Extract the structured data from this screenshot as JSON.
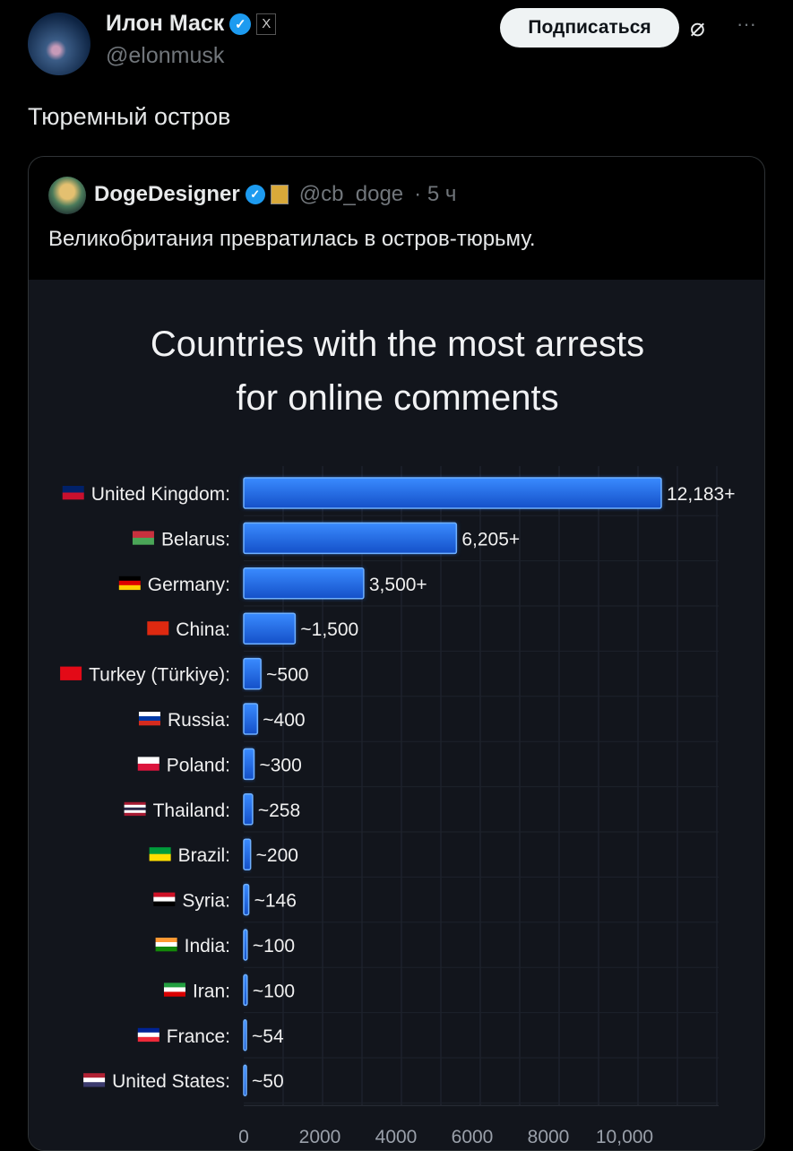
{
  "author": {
    "name": "Илон Маск",
    "handle": "@elonmusk",
    "affiliate_badge": "X"
  },
  "follow_label": "Подписаться",
  "post_text": "Тюремный остров",
  "quoted": {
    "name": "DogeDesigner",
    "handle": "@cb_doge",
    "time": "· 5 ч",
    "text": "Великобритания превратилась в остров-тюрьму."
  },
  "chart_data": {
    "type": "bar",
    "orientation": "horizontal",
    "title": [
      "Countries with the most arrests",
      "for online comments"
    ],
    "categories": [
      "United Kingdom:",
      "Belarus:",
      "Germany:",
      "China:",
      "Turkey (Türkiye):",
      "Russia:",
      "Poland:",
      "Thailand:",
      "Brazil:",
      "Syria:",
      "India:",
      "Iran:",
      "France:",
      "United States:"
    ],
    "values": [
      12183,
      6205,
      3500,
      1500,
      500,
      400,
      300,
      258,
      200,
      146,
      100,
      100,
      54,
      50
    ],
    "labels": [
      "12,183+",
      "6,205+",
      "3,500+",
      "~1,500",
      "~500",
      "~400",
      "~300",
      "~258",
      "~200",
      "~146",
      "~100",
      "~100",
      "~54",
      "~50"
    ],
    "xticks": [
      "0",
      "2000",
      "4000",
      "6000",
      "8000",
      "10,000"
    ],
    "xtick_values": [
      0,
      2000,
      4000,
      6000,
      8000,
      10000
    ],
    "bar_color": "#1e6ff0",
    "grid": true
  }
}
